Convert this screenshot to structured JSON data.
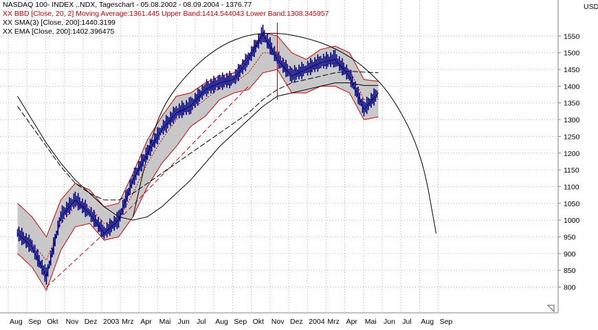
{
  "chart_data": {
    "type": "line",
    "title": "NASDAQ 100- INDEX ,.NDX, Tageschart - 05.08.2002 - 08.09.2004 - 1376.77",
    "legend": [
      {
        "text": "XX BBD [Close, 20, 2] Moving Average:1361.445 Upper Band:1414.544043 Lower Band:1308.345957",
        "color": "#cc0000"
      },
      {
        "text": "XX SMA(3) [Close, 200]:1440.3199",
        "color": "#000000"
      },
      {
        "text": "XX EMA [Close, 200]:1402.396475",
        "color": "#000000"
      }
    ],
    "y_unit": "USD",
    "ylim": [
      760,
      1600
    ],
    "yticks": [
      800,
      850,
      900,
      950,
      1000,
      1050,
      1100,
      1150,
      1200,
      1250,
      1300,
      1350,
      1400,
      1450,
      1500,
      1550
    ],
    "xlabels": [
      "Aug",
      "Sep",
      "Okt",
      "Nov",
      "Dez",
      "2003",
      "Mrz",
      "Apr",
      "Mai",
      "Jun",
      "Jul",
      "Aug",
      "Sep",
      "Okt",
      "Nov",
      "Dez",
      "2004",
      "Mrz",
      "Apr",
      "Mai",
      "Jun",
      "Jul",
      "Aug",
      "Sep"
    ],
    "x": [
      "2002-08",
      "2002-09",
      "2002-10",
      "2002-11",
      "2002-12",
      "2003-01",
      "2003-02",
      "2003-03",
      "2003-04",
      "2003-05",
      "2003-06",
      "2003-07",
      "2003-08",
      "2003-09",
      "2003-10",
      "2003-11",
      "2003-12",
      "2004-01",
      "2004-02",
      "2004-03",
      "2004-04",
      "2004-05",
      "2004-06",
      "2004-07",
      "2004-08",
      "2004-09"
    ],
    "series": [
      {
        "name": "NASDAQ 100- INDEX",
        "values": [
          960,
          920,
          830,
          1010,
          1060,
          1020,
          960,
          1000,
          1120,
          1200,
          1270,
          1320,
          1340,
          1390,
          1410,
          1420,
          1480,
          1555,
          1480,
          1430,
          1450,
          1470,
          1480,
          1430,
          1330,
          1380
        ]
      },
      {
        "name": "Moving Average",
        "values": [
          975,
          930,
          880,
          990,
          1040,
          1040,
          990,
          1000,
          1080,
          1170,
          1240,
          1300,
          1330,
          1360,
          1395,
          1410,
          1440,
          1500,
          1500,
          1450,
          1440,
          1460,
          1470,
          1450,
          1360,
          1361
        ]
      },
      {
        "name": "Upper Band",
        "values": [
          1050,
          1010,
          950,
          1060,
          1110,
          1090,
          1040,
          1050,
          1140,
          1240,
          1310,
          1370,
          1380,
          1410,
          1430,
          1440,
          1490,
          1560,
          1550,
          1500,
          1480,
          1510,
          1520,
          1500,
          1420,
          1414.54
        ]
      },
      {
        "name": "Lower Band",
        "values": [
          900,
          860,
          790,
          910,
          980,
          990,
          940,
          950,
          1010,
          1100,
          1170,
          1220,
          1280,
          1310,
          1360,
          1380,
          1390,
          1440,
          1450,
          1380,
          1380,
          1400,
          1400,
          1380,
          1300,
          1308.35
        ]
      },
      {
        "name": "SMA(3) [Close, 200]",
        "values": [
          1340,
          1280,
          1220,
          1160,
          1110,
          1080,
          1060,
          1060,
          1080,
          1110,
          1140,
          1170,
          1200,
          1230,
          1260,
          1290,
          1320,
          1360,
          1390,
          1410,
          1420,
          1430,
          1440,
          1445,
          1442,
          1440.32
        ]
      },
      {
        "name": "EMA [Close, 200]",
        "values": [
          1370,
          1300,
          1230,
          1170,
          1120,
          1080,
          1040,
          1010,
          1000,
          1010,
          1040,
          1080,
          1120,
          1170,
          1220,
          1260,
          1300,
          1340,
          1370,
          1380,
          1390,
          1400,
          1410,
          1410,
          1402,
          1402.4
        ]
      },
      {
        "name": "",
        "values": [
          null,
          null,
          800,
          null,
          null,
          null,
          null,
          1000,
          null,
          null,
          null,
          null,
          null,
          null,
          null,
          null,
          1400,
          null,
          null,
          null,
          null,
          null,
          null,
          null,
          null,
          null
        ]
      }
    ],
    "arc": [
      {
        "x": "2003-04",
        "y": 1010
      },
      {
        "x": "2003-05",
        "y": 1200
      },
      {
        "x": "2003-06",
        "y": 1340
      },
      {
        "x": "2003-08",
        "y": 1450
      },
      {
        "x": "2003-10",
        "y": 1520
      },
      {
        "x": "2003-12",
        "y": 1555
      },
      {
        "x": "2004-02",
        "y": 1560
      },
      {
        "x": "2004-04",
        "y": 1545
      },
      {
        "x": "2004-06",
        "y": 1515
      },
      {
        "x": "2004-08",
        "y": 1460
      },
      {
        "x": "2004-10",
        "y": 1370
      },
      {
        "x": "2004-12",
        "y": 1200
      },
      {
        "x": "2005-01",
        "y": 960
      }
    ],
    "grid": true,
    "legend_position": "top-left",
    "colors": {
      "price": "#000080",
      "bands": "#cc0000",
      "band_fill": "#c8c8c8",
      "lines": "#000000",
      "grid": "#b0b0b0"
    }
  }
}
